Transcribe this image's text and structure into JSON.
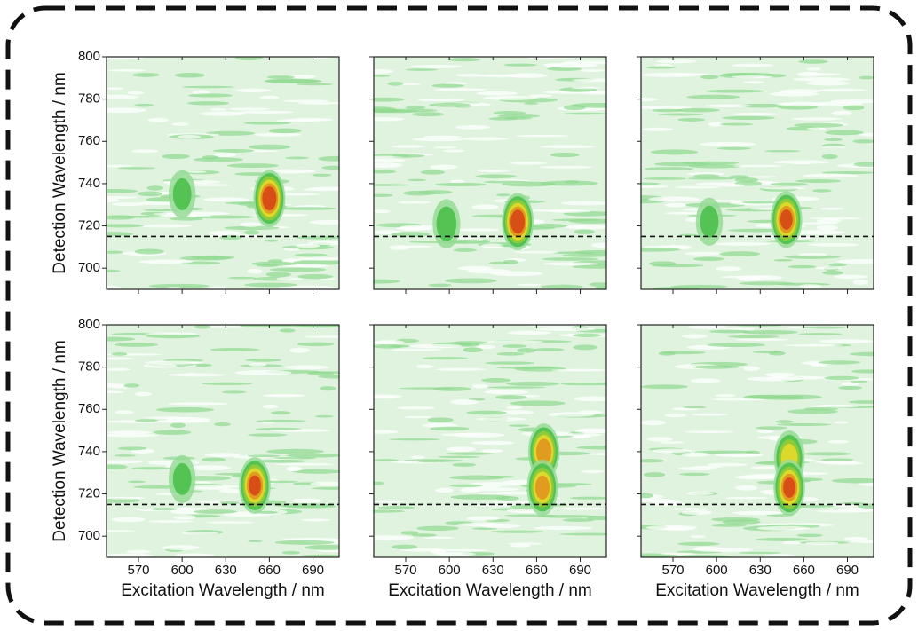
{
  "chart_data": [
    {
      "type": "heatmap",
      "xlim": [
        548,
        708
      ],
      "ylim": [
        690,
        800
      ],
      "xticks": [
        570,
        600,
        630,
        660,
        690
      ],
      "yticks": [
        700,
        720,
        740,
        760,
        780,
        800
      ],
      "xtick_labels": false,
      "ytick_labels": true,
      "ylabel": "Detection Wavelength / nm",
      "cutoff": 715,
      "peaks": [
        {
          "x": 600,
          "y": 735,
          "intensity": 0.3
        },
        {
          "x": 660,
          "y": 733,
          "intensity": 1.0
        }
      ]
    },
    {
      "type": "heatmap",
      "xlim": [
        548,
        708
      ],
      "ylim": [
        690,
        800
      ],
      "xticks": [
        570,
        600,
        630,
        660,
        690
      ],
      "yticks": [
        700,
        720,
        740,
        760,
        780,
        800
      ],
      "xtick_labels": false,
      "ytick_labels": false,
      "cutoff": 715,
      "peaks": [
        {
          "x": 598,
          "y": 721,
          "intensity": 0.35
        },
        {
          "x": 647,
          "y": 722,
          "intensity": 1.0
        }
      ]
    },
    {
      "type": "heatmap",
      "xlim": [
        548,
        708
      ],
      "ylim": [
        690,
        800
      ],
      "xticks": [
        570,
        600,
        630,
        660,
        690
      ],
      "yticks": [
        700,
        720,
        740,
        760,
        780,
        800
      ],
      "xtick_labels": false,
      "ytick_labels": false,
      "cutoff": 715,
      "peaks": [
        {
          "x": 595,
          "y": 722,
          "intensity": 0.3
        },
        {
          "x": 648,
          "y": 723,
          "intensity": 0.9
        }
      ]
    },
    {
      "type": "heatmap",
      "xlim": [
        548,
        708
      ],
      "ylim": [
        690,
        800
      ],
      "xticks": [
        570,
        600,
        630,
        660,
        690
      ],
      "yticks": [
        700,
        720,
        740,
        760,
        780,
        800
      ],
      "xtick_labels": true,
      "ytick_labels": true,
      "xlabel": "Excitation Wavelength / nm",
      "ylabel": "Detection Wavelength / nm",
      "cutoff": 715,
      "peaks": [
        {
          "x": 600,
          "y": 727,
          "intensity": 0.3
        },
        {
          "x": 650,
          "y": 724,
          "intensity": 0.9
        }
      ]
    },
    {
      "type": "heatmap",
      "xlim": [
        548,
        708
      ],
      "ylim": [
        690,
        800
      ],
      "xticks": [
        570,
        600,
        630,
        660,
        690
      ],
      "yticks": [
        700,
        720,
        740,
        760,
        780,
        800
      ],
      "xtick_labels": true,
      "ytick_labels": false,
      "xlabel": "Excitation Wavelength / nm",
      "cutoff": 715,
      "peaks": [
        {
          "x": 665,
          "y": 740,
          "intensity": 0.85
        },
        {
          "x": 664,
          "y": 723,
          "intensity": 0.8
        }
      ]
    },
    {
      "type": "heatmap",
      "xlim": [
        548,
        708
      ],
      "ylim": [
        690,
        800
      ],
      "xticks": [
        570,
        600,
        630,
        660,
        690
      ],
      "yticks": [
        700,
        720,
        740,
        760,
        780,
        800
      ],
      "xtick_labels": true,
      "ytick_labels": false,
      "xlabel": "Excitation Wavelength / nm",
      "cutoff": 715,
      "peaks": [
        {
          "x": 650,
          "y": 737,
          "intensity": 0.7
        },
        {
          "x": 650,
          "y": 723,
          "intensity": 0.9
        }
      ]
    }
  ]
}
